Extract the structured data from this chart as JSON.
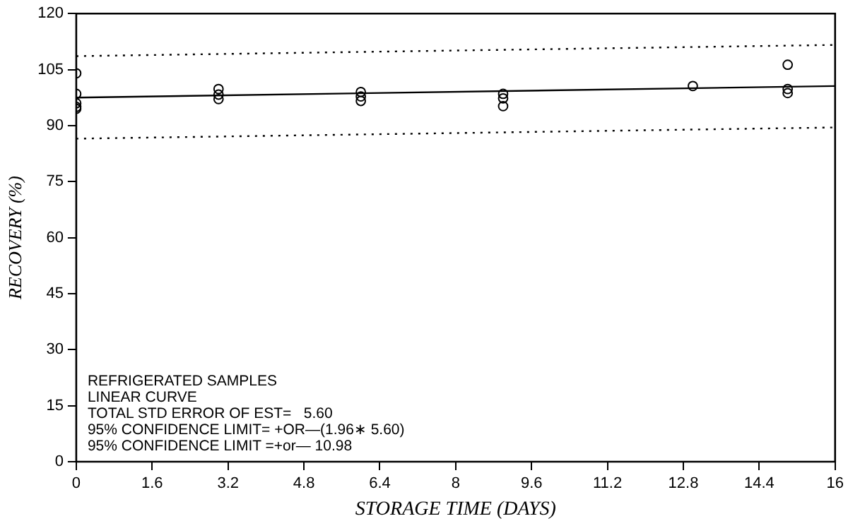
{
  "chart_data": {
    "type": "scatter",
    "xlabel": "STORAGE TIME (DAYS)",
    "ylabel": "RECOVERY (%)",
    "xlim": [
      0,
      16
    ],
    "xticks": [
      0,
      1.6,
      3.2,
      4.8,
      6.4,
      8,
      9.6,
      11.2,
      12.8,
      14.4,
      16
    ],
    "ylim": [
      0,
      120
    ],
    "yticks": [
      0,
      15,
      30,
      45,
      60,
      75,
      90,
      105,
      120
    ],
    "marker": "circle",
    "grid": false,
    "legend": false,
    "series": [
      {
        "color": "#000000",
        "x": [
          0,
          0,
          0,
          0,
          0,
          3,
          3,
          3,
          6,
          6,
          6,
          9,
          9,
          9,
          13,
          15,
          15,
          15
        ],
        "values": [
          104,
          98.5,
          96,
          95,
          94.5,
          99.8,
          98.3,
          97.1,
          99,
          97.8,
          96.6,
          98.5,
          97.3,
          95.2,
          100.6,
          106.3,
          99.8,
          98.7
        ]
      },
      {
        "type": "line",
        "color": "#000000",
        "marker": "none",
        "line_style": "solid",
        "x": [
          0,
          16
        ],
        "values": [
          97.5,
          100.6
        ]
      },
      {
        "type": "line",
        "color": "#000000",
        "marker": "none",
        "line_style": "dotted",
        "x": [
          0,
          16
        ],
        "values": [
          108.6,
          111.6
        ]
      },
      {
        "type": "line",
        "color": "#000000",
        "marker": "none",
        "line_style": "dotted",
        "x": [
          0,
          16
        ],
        "values": [
          86.5,
          89.5
        ]
      }
    ],
    "annotations": [
      "REFRIGERATED SAMPLES",
      "LINEAR CURVE",
      "TOTAL STD ERROR OF EST=   5.60",
      "95% CONFIDENCE LIMIT= +OR—(1.96∗ 5.60)",
      "95% CONFIDENCE LIMIT =+or— 10.98"
    ]
  }
}
